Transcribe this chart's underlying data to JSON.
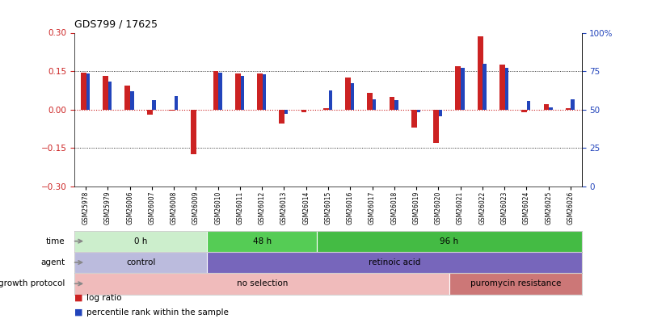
{
  "title": "GDS799 / 17625",
  "samples": [
    "GSM25978",
    "GSM25979",
    "GSM26006",
    "GSM26007",
    "GSM26008",
    "GSM26009",
    "GSM26010",
    "GSM26011",
    "GSM26012",
    "GSM26013",
    "GSM26014",
    "GSM26015",
    "GSM26016",
    "GSM26017",
    "GSM26018",
    "GSM26019",
    "GSM26020",
    "GSM26021",
    "GSM26022",
    "GSM26023",
    "GSM26024",
    "GSM26025",
    "GSM26026"
  ],
  "log_ratio": [
    0.145,
    0.13,
    0.095,
    -0.02,
    -0.005,
    -0.175,
    0.15,
    0.14,
    0.14,
    -0.055,
    -0.01,
    0.005,
    0.125,
    0.065,
    0.05,
    -0.07,
    -0.13,
    0.17,
    0.285,
    0.175,
    -0.01,
    0.02,
    0.005
  ],
  "pct_rank": [
    0.735,
    0.68,
    0.62,
    0.56,
    0.585,
    0.5,
    0.74,
    0.72,
    0.73,
    0.47,
    0.5,
    0.625,
    0.67,
    0.565,
    0.56,
    0.48,
    0.455,
    0.77,
    0.8,
    0.77,
    0.555,
    0.515,
    0.568
  ],
  "ylim_left": [
    -0.3,
    0.3
  ],
  "yticks_left": [
    -0.3,
    -0.15,
    0.0,
    0.15,
    0.3
  ],
  "yticks_right": [
    0,
    25,
    50,
    75,
    100
  ],
  "hlines": [
    0.15,
    -0.15
  ],
  "bar_color_red": "#cc2222",
  "bar_color_blue": "#2244bb",
  "time_groups": [
    {
      "label": "0 h",
      "start": 0,
      "end": 6,
      "color": "#cceecc"
    },
    {
      "label": "48 h",
      "start": 6,
      "end": 11,
      "color": "#55cc55"
    },
    {
      "label": "96 h",
      "start": 11,
      "end": 23,
      "color": "#44bb44"
    }
  ],
  "agent_groups": [
    {
      "label": "control",
      "start": 0,
      "end": 6,
      "color": "#bbbbdd"
    },
    {
      "label": "retinoic acid",
      "start": 6,
      "end": 23,
      "color": "#7766bb"
    }
  ],
  "growth_groups": [
    {
      "label": "no selection",
      "start": 0,
      "end": 17,
      "color": "#f0bbbb"
    },
    {
      "label": "puromycin resistance",
      "start": 17,
      "end": 23,
      "color": "#cc7777"
    }
  ],
  "row_labels": [
    "time",
    "agent",
    "growth protocol"
  ],
  "legend_items": [
    {
      "color": "#cc2222",
      "label": "log ratio"
    },
    {
      "color": "#2244bb",
      "label": "percentile rank within the sample"
    }
  ]
}
